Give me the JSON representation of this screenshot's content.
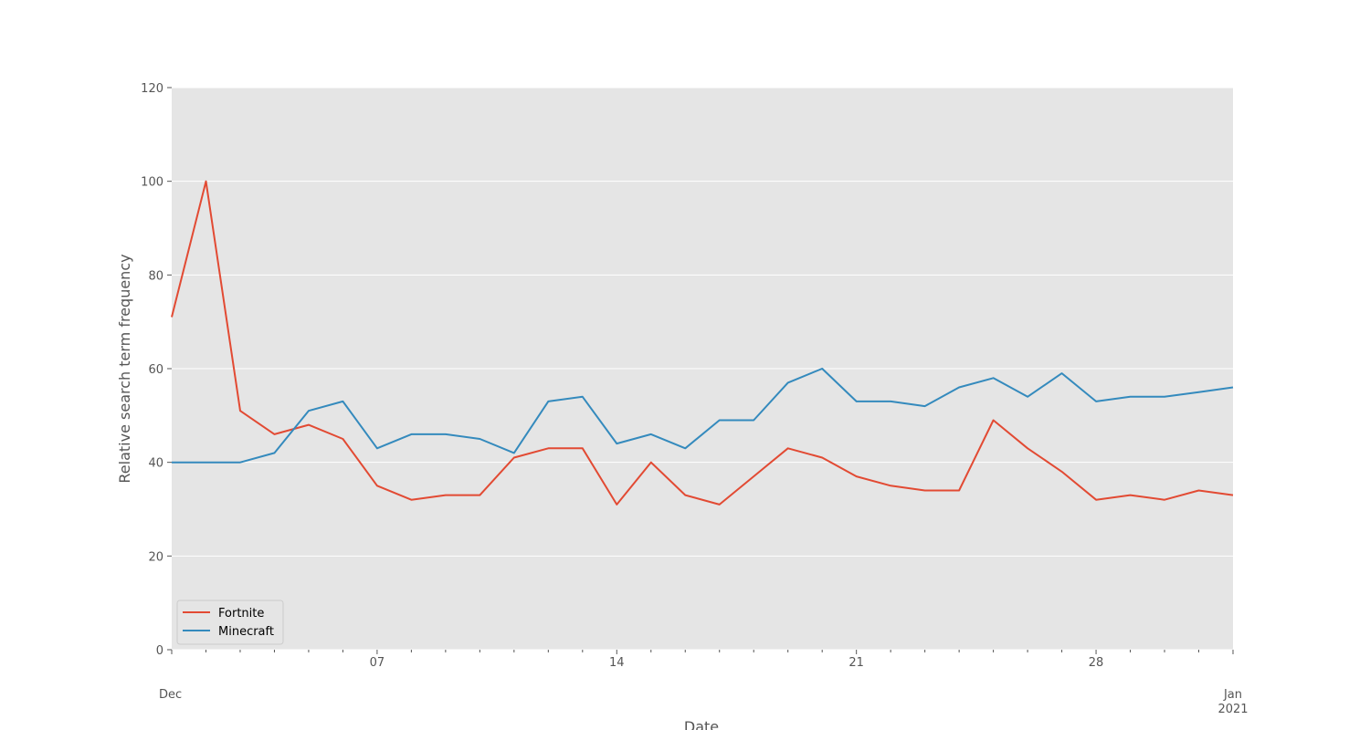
{
  "chart_data": {
    "type": "line",
    "xlabel": "Date",
    "ylabel": "Relative search term frequency",
    "ylim": [
      0,
      120
    ],
    "yticks": [
      0,
      20,
      40,
      60,
      80,
      100,
      120
    ],
    "x_range": [
      "2020-12-01",
      "2021-01-01"
    ],
    "x": [
      "2020-12-01",
      "2020-12-02",
      "2020-12-03",
      "2020-12-04",
      "2020-12-05",
      "2020-12-06",
      "2020-12-07",
      "2020-12-08",
      "2020-12-09",
      "2020-12-10",
      "2020-12-11",
      "2020-12-12",
      "2020-12-13",
      "2020-12-14",
      "2020-12-15",
      "2020-12-16",
      "2020-12-17",
      "2020-12-18",
      "2020-12-19",
      "2020-12-20",
      "2020-12-21",
      "2020-12-22",
      "2020-12-23",
      "2020-12-24",
      "2020-12-25",
      "2020-12-26",
      "2020-12-27",
      "2020-12-28",
      "2020-12-29",
      "2020-12-30",
      "2020-12-31",
      "2021-01-01"
    ],
    "x_major_ticks": [
      {
        "date": "2020-12-01",
        "label": "Dec"
      },
      {
        "date": "2020-12-07",
        "label": "07"
      },
      {
        "date": "2020-12-14",
        "label": "14"
      },
      {
        "date": "2020-12-21",
        "label": "21"
      },
      {
        "date": "2020-12-28",
        "label": "28"
      },
      {
        "date": "2021-01-01",
        "label": "Jan\n2021"
      }
    ],
    "grid": true,
    "legend_position": "lower-left",
    "series": [
      {
        "name": "Fortnite",
        "color": "#E24A33",
        "values": [
          71,
          100,
          51,
          46,
          48,
          45,
          35,
          32,
          33,
          33,
          41,
          43,
          43,
          31,
          40,
          33,
          31,
          37,
          43,
          41,
          37,
          35,
          34,
          34,
          49,
          43,
          38,
          32,
          33,
          32,
          34,
          33
        ]
      },
      {
        "name": "Minecraft",
        "color": "#348ABD",
        "values": [
          40,
          40,
          40,
          42,
          51,
          53,
          43,
          46,
          46,
          45,
          42,
          53,
          54,
          44,
          46,
          43,
          49,
          49,
          57,
          60,
          53,
          53,
          52,
          56,
          58,
          54,
          59,
          53,
          54,
          54,
          55,
          56
        ]
      }
    ],
    "colors": {
      "plot_background": "#E5E5E5",
      "grid": "#FFFFFF",
      "tick_text": "#555555"
    }
  }
}
